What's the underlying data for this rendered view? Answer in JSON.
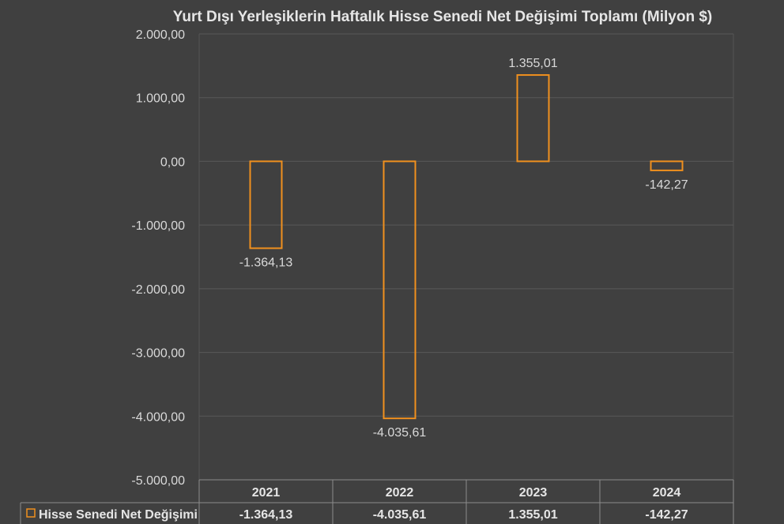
{
  "chart_data": {
    "type": "bar",
    "title": "Yurt Dışı Yerleşiklerin Haftalık Hisse Senedi Net Değişimi Toplamı (Milyon $)",
    "categories": [
      "2021",
      "2022",
      "2023",
      "2024"
    ],
    "series": [
      {
        "name": "Hisse Senedi Net Değişimi",
        "values": [
          -1364.13,
          -4035.61,
          1355.01,
          -142.27
        ],
        "labels": [
          "-1.364,13",
          "-4.035,61",
          "1.355,01",
          "-142,27"
        ],
        "color": "#f0901e"
      }
    ],
    "ylim": [
      -5000,
      2000
    ],
    "yticks": [
      2000,
      1000,
      0,
      -1000,
      -2000,
      -3000,
      -4000,
      -5000
    ],
    "ytick_labels": [
      "2.000,00",
      "1.000,00",
      "0,00",
      "-1.000,00",
      "-2.000,00",
      "-3.000,00",
      "-4.000,00",
      "-5.000,00"
    ],
    "grid": true,
    "data_table": true
  }
}
